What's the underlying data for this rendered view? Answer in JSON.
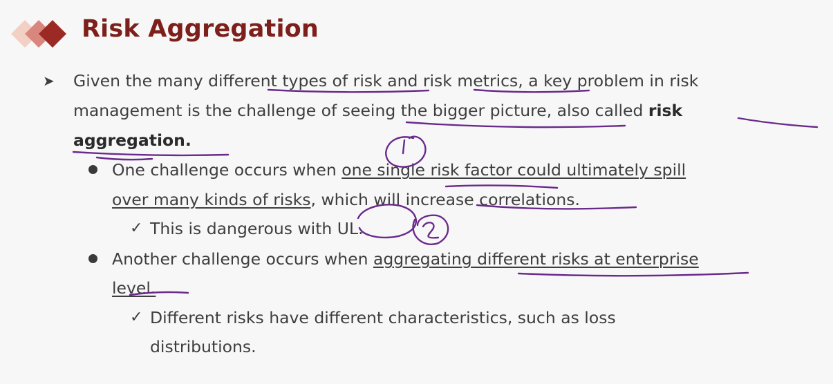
{
  "title": "Risk Aggregation",
  "bullet1": {
    "line1": "Given the many different types of risk and risk metrics, a key problem in risk",
    "line2_normal": "management is the challenge of seeing the bigger picture, also called ",
    "line2_bold": "risk",
    "line3_bold": "aggregation."
  },
  "sub1": {
    "line1_normal": "One challenge occurs when ",
    "line1_underlined": "one single risk factor could ultimately spill",
    "line2_underlined": "over many kinds of risks",
    "line2_normal": ", which will increase correlations.",
    "check": "This is dangerous with UL."
  },
  "sub2": {
    "line1_normal": "Another challenge occurs when ",
    "line1_underlined": "aggregating different risks at enterprise",
    "line2_underlined": "level.",
    "check_line1": "Different risks have different characteristics, such as loss",
    "check_line2": "distributions."
  },
  "annotations": {
    "circle1": "1",
    "circle2": "2"
  },
  "colors": {
    "title": "#7d1f1a",
    "ink": "#6a2a8c",
    "logo_dark": "#9b2a24"
  }
}
